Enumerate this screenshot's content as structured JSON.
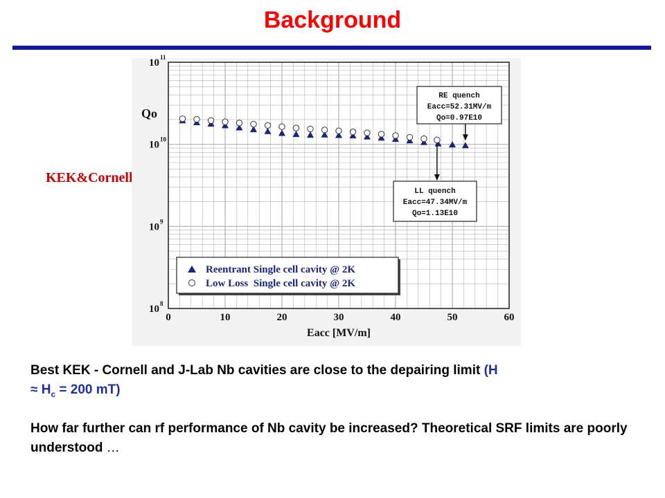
{
  "slide": {
    "title": "Background",
    "side_label": "KEK&Cornell"
  },
  "text": {
    "line1_main": "Best KEK - Cornell and J-Lab Nb cavities are close to the depairing limit ",
    "line1_paren_open": "(H",
    "line1_approx": "≈ H",
    "line1_sub": "c",
    "line1_tail": " = 200 mT)",
    "line2_main": "How far further can rf performance of  Nb cavity be increased?  Theoretical SRF limits are poorly understood ",
    "line2_ellipsis": "…"
  },
  "colors": {
    "title": "#ff0000",
    "rule": "#1a1a99",
    "side_label": "#cc0000",
    "highlight": "#1f2fa3",
    "reentrant": "#1a237e",
    "grid": "#b0b0b0"
  },
  "chart_data": {
    "type": "scatter",
    "xlabel": "Eacc [MV/m]",
    "ylabel": "Qo",
    "xlim": [
      0,
      60
    ],
    "ylim": [
      100000000.0,
      100000000000.0
    ],
    "yscale": "log",
    "xticks": [
      "0",
      "10",
      "20",
      "30",
      "40",
      "50",
      "60"
    ],
    "yticks": [
      {
        "value": 100000000000.0,
        "base": "10",
        "exp": "11"
      },
      {
        "value": 10000000000.0,
        "base": "10",
        "exp": "10"
      },
      {
        "value": 1000000000.0,
        "base": "10",
        "exp": "9"
      },
      {
        "value": 100000000.0,
        "base": "10",
        "exp": "8"
      }
    ],
    "grid": true,
    "legend_position": "bottom-left",
    "series": [
      {
        "name": "Reentrant Single cell cavity @ 2K",
        "marker": "triangle",
        "x": [
          2.5,
          5,
          7.5,
          10,
          12.5,
          15,
          17.5,
          20,
          22.5,
          25,
          27.5,
          30,
          32.5,
          35,
          37.5,
          40,
          42.5,
          45,
          47.5,
          50,
          52.3
        ],
        "y": [
          19500000000.0,
          18500000000.0,
          17800000000.0,
          17000000000.0,
          16000000000.0,
          15200000000.0,
          14400000000.0,
          13700000000.0,
          13300000000.0,
          13000000000.0,
          13100000000.0,
          12900000000.0,
          12800000000.0,
          12400000000.0,
          12000000000.0,
          11600000000.0,
          11100000000.0,
          10600000000.0,
          10200000000.0,
          9900000000.0,
          9700000000.0
        ]
      },
      {
        "name": "Low Loss  Single cell cavity @ 2K",
        "marker": "open-circle",
        "x": [
          2.5,
          5,
          7.5,
          10,
          12.5,
          15,
          17.5,
          20,
          22.5,
          25,
          27.5,
          30,
          32.5,
          35,
          37.5,
          40,
          42.5,
          45,
          47.3
        ],
        "y": [
          20500000000.0,
          20200000000.0,
          19500000000.0,
          18800000000.0,
          18200000000.0,
          17600000000.0,
          17000000000.0,
          16400000000.0,
          15800000000.0,
          15400000000.0,
          15000000000.0,
          14600000000.0,
          14200000000.0,
          13800000000.0,
          13300000000.0,
          12800000000.0,
          12200000000.0,
          11700000000.0,
          11300000000.0
        ]
      }
    ],
    "annotations": [
      {
        "lines": [
          "RE quench",
          "Eacc=52.31MV/m",
          "Qo=0.97E10"
        ]
      },
      {
        "lines": [
          "LL quench",
          "Eacc=47.34MV/m",
          "Qo=1.13E10"
        ]
      }
    ]
  }
}
